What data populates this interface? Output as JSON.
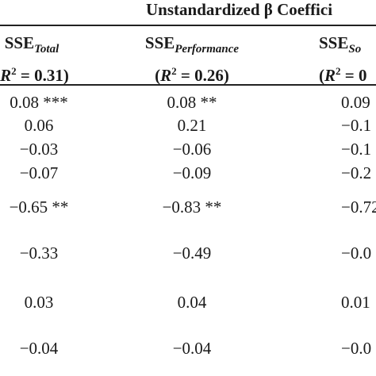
{
  "title": "Unstandardized β Coeffici",
  "columns": [
    {
      "name": "SSE",
      "subscript": "Total",
      "r2_open": "(",
      "r2_label": "R",
      "r2_sup": "2",
      "r2_value": " = 0.31)"
    },
    {
      "name": "SSE",
      "subscript": "Performance",
      "r2_open": "(",
      "r2_label": "R",
      "r2_sup": "2",
      "r2_value": " = 0.26)"
    },
    {
      "name": "SSE",
      "subscript": "So",
      "r2_open": "(",
      "r2_label": "R",
      "r2_sup": "2",
      "r2_value": " = 0"
    }
  ],
  "rows": [
    [
      "0.08 ***",
      "0.08 **",
      "0.09"
    ],
    [
      "0.06",
      "0.21",
      "−0.1"
    ],
    [
      "−0.03",
      "−0.06",
      "−0.1"
    ],
    [
      "−0.07",
      "−0.09",
      "−0.2"
    ],
    [
      "−0.65 **",
      "−0.83 **",
      "−0.72"
    ],
    [
      "−0.33",
      "−0.49",
      "−0.0"
    ],
    [
      "0.03",
      "0.04",
      "0.01"
    ],
    [
      "−0.04",
      "−0.04",
      "−0.0"
    ]
  ]
}
